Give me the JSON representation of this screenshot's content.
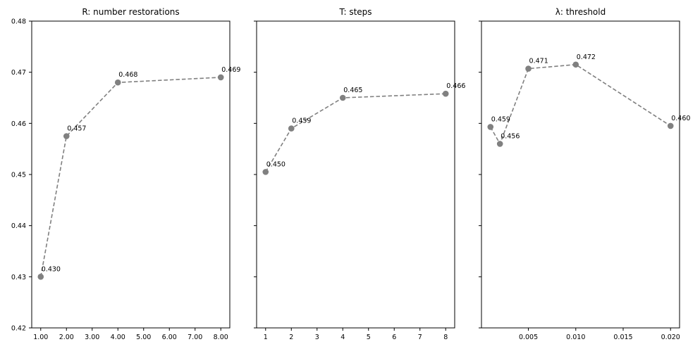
{
  "chart_data": [
    {
      "type": "line",
      "title": "R: number restorations",
      "x": [
        1,
        2,
        4,
        8
      ],
      "y": [
        0.43,
        0.4575,
        0.468,
        0.469
      ],
      "point_labels": [
        "0.430",
        "0.457",
        "0.468",
        "0.469"
      ],
      "xlim": [
        0.65,
        8.35
      ],
      "ylim": [
        0.42,
        0.48
      ],
      "xticks": [
        1,
        2,
        3,
        4,
        5,
        6,
        7,
        8
      ],
      "xtick_labels": [
        "1.00",
        "2.00",
        "3.00",
        "4.00",
        "5.00",
        "6.00",
        "7.00",
        "8.00"
      ],
      "yticks": [
        0.42,
        0.43,
        0.44,
        0.45,
        0.46,
        0.47,
        0.48
      ],
      "ytick_labels": [
        "0.42",
        "0.43",
        "0.44",
        "0.45",
        "0.46",
        "0.47",
        "0.48"
      ],
      "show_ytick_labels": true,
      "grid": false,
      "line_color": "#808080",
      "line_style": "dashed",
      "marker": "circle"
    },
    {
      "type": "line",
      "title": "T: steps",
      "x": [
        1,
        2,
        4,
        8
      ],
      "y": [
        0.4505,
        0.459,
        0.465,
        0.4658
      ],
      "point_labels": [
        "0.450",
        "0.459",
        "0.465",
        "0.466"
      ],
      "xlim": [
        0.65,
        8.35
      ],
      "ylim": [
        0.42,
        0.48
      ],
      "xticks": [
        1,
        2,
        3,
        4,
        5,
        6,
        7,
        8
      ],
      "xtick_labels": [
        "1",
        "2",
        "3",
        "4",
        "5",
        "6",
        "7",
        "8"
      ],
      "yticks": [
        0.42,
        0.43,
        0.44,
        0.45,
        0.46,
        0.47,
        0.48
      ],
      "ytick_labels": [],
      "show_ytick_labels": false,
      "grid": false,
      "line_color": "#808080",
      "line_style": "dashed",
      "marker": "circle"
    },
    {
      "type": "line",
      "title": "λ: threshold",
      "x": [
        0.001,
        0.002,
        0.005,
        0.01,
        0.02
      ],
      "y": [
        0.4593,
        0.456,
        0.4707,
        0.4715,
        0.4595
      ],
      "point_labels": [
        "0.459",
        "0.456",
        "0.471",
        "0.472",
        "0.460"
      ],
      "xlim": [
        5e-05,
        0.02095
      ],
      "ylim": [
        0.42,
        0.48
      ],
      "xticks": [
        0.005,
        0.01,
        0.015,
        0.02
      ],
      "xtick_labels": [
        "0.005",
        "0.010",
        "0.015",
        "0.020"
      ],
      "yticks": [
        0.42,
        0.43,
        0.44,
        0.45,
        0.46,
        0.47,
        0.48
      ],
      "ytick_labels": [],
      "show_ytick_labels": false,
      "grid": false,
      "line_color": "#808080",
      "line_style": "dashed",
      "marker": "circle"
    }
  ]
}
